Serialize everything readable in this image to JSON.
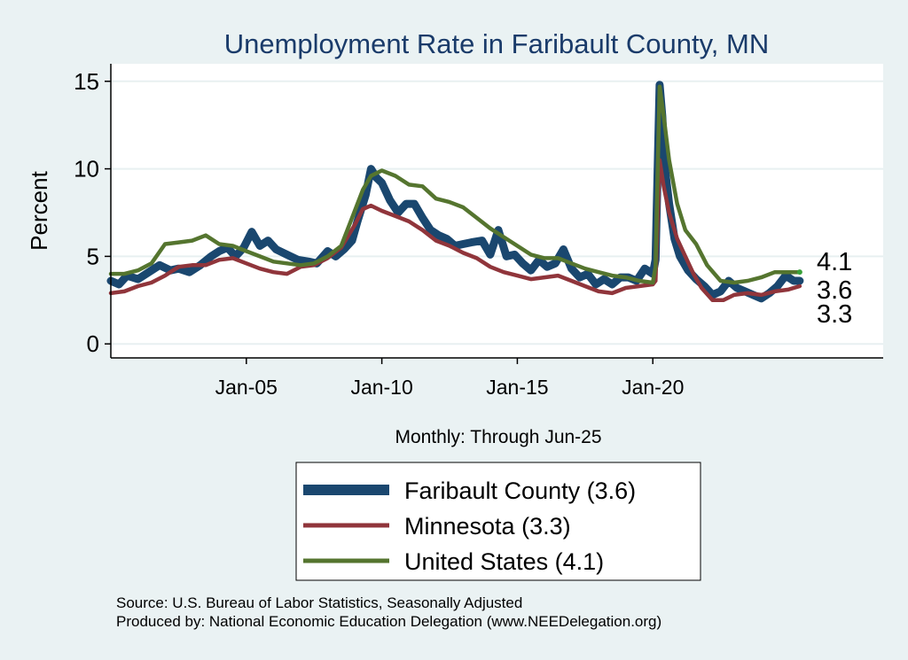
{
  "chart_data": {
    "type": "line",
    "title": "Unemployment Rate in Faribault  County, MN",
    "ylabel": "Percent",
    "xlabel": "Monthly: Through Jun-25",
    "ylim": [
      0,
      16
    ],
    "yticks": [
      0,
      5,
      10,
      15
    ],
    "xlim": [
      2000.0,
      2028.5
    ],
    "x_start": 2000.0,
    "x_end": 2025.42,
    "xticks": [
      {
        "x": 2005.0,
        "label": "Jan-05"
      },
      {
        "x": 2010.0,
        "label": "Jan-10"
      },
      {
        "x": 2015.0,
        "label": "Jan-15"
      },
      {
        "x": 2020.0,
        "label": "Jan-20"
      }
    ],
    "grid": true,
    "legend_position": "bottom",
    "series": [
      {
        "name": "Faribault  County",
        "legend_label": "Faribault  County (3.6)",
        "color": "#1a476f",
        "end_label": "3.6",
        "points": [
          [
            2000.0,
            3.6
          ],
          [
            2000.3,
            3.4
          ],
          [
            2000.6,
            3.9
          ],
          [
            2001.0,
            3.7
          ],
          [
            2001.4,
            4.1
          ],
          [
            2001.8,
            4.5
          ],
          [
            2002.2,
            4.2
          ],
          [
            2002.5,
            4.3
          ],
          [
            2002.9,
            4.1
          ],
          [
            2003.3,
            4.5
          ],
          [
            2003.7,
            5.0
          ],
          [
            2004.0,
            5.3
          ],
          [
            2004.3,
            5.5
          ],
          [
            2004.6,
            5.0
          ],
          [
            2004.9,
            5.5
          ],
          [
            2005.2,
            6.4
          ],
          [
            2005.5,
            5.6
          ],
          [
            2005.8,
            5.9
          ],
          [
            2006.1,
            5.4
          ],
          [
            2006.5,
            5.1
          ],
          [
            2006.9,
            4.8
          ],
          [
            2007.3,
            4.7
          ],
          [
            2007.6,
            4.6
          ],
          [
            2008.0,
            5.3
          ],
          [
            2008.3,
            5.0
          ],
          [
            2008.6,
            5.4
          ],
          [
            2008.9,
            5.9
          ],
          [
            2009.1,
            7.0
          ],
          [
            2009.4,
            8.5
          ],
          [
            2009.6,
            10.0
          ],
          [
            2009.8,
            9.5
          ],
          [
            2010.0,
            9.2
          ],
          [
            2010.3,
            8.2
          ],
          [
            2010.6,
            7.5
          ],
          [
            2010.9,
            8.0
          ],
          [
            2011.2,
            8.0
          ],
          [
            2011.5,
            7.2
          ],
          [
            2011.8,
            6.5
          ],
          [
            2012.1,
            6.2
          ],
          [
            2012.4,
            6.0
          ],
          [
            2012.7,
            5.6
          ],
          [
            2013.0,
            5.7
          ],
          [
            2013.3,
            5.8
          ],
          [
            2013.7,
            5.9
          ],
          [
            2014.0,
            5.1
          ],
          [
            2014.3,
            6.5
          ],
          [
            2014.6,
            5.0
          ],
          [
            2014.9,
            5.1
          ],
          [
            2015.2,
            4.6
          ],
          [
            2015.5,
            4.2
          ],
          [
            2015.8,
            4.8
          ],
          [
            2016.1,
            4.4
          ],
          [
            2016.4,
            4.6
          ],
          [
            2016.7,
            5.4
          ],
          [
            2017.0,
            4.3
          ],
          [
            2017.3,
            3.8
          ],
          [
            2017.6,
            4.0
          ],
          [
            2017.9,
            3.4
          ],
          [
            2018.2,
            3.7
          ],
          [
            2018.5,
            3.4
          ],
          [
            2018.8,
            3.8
          ],
          [
            2019.1,
            3.8
          ],
          [
            2019.4,
            3.6
          ],
          [
            2019.7,
            4.3
          ],
          [
            2020.0,
            4.0
          ],
          [
            2020.1,
            4.8
          ],
          [
            2020.25,
            14.8
          ],
          [
            2020.35,
            13.0
          ],
          [
            2020.45,
            10.0
          ],
          [
            2020.6,
            8.0
          ],
          [
            2020.8,
            6.0
          ],
          [
            2021.0,
            5.0
          ],
          [
            2021.3,
            4.2
          ],
          [
            2021.6,
            3.7
          ],
          [
            2021.9,
            3.3
          ],
          [
            2022.2,
            2.8
          ],
          [
            2022.5,
            3.0
          ],
          [
            2022.8,
            3.6
          ],
          [
            2023.1,
            3.2
          ],
          [
            2023.4,
            3.0
          ],
          [
            2023.7,
            2.8
          ],
          [
            2024.0,
            2.6
          ],
          [
            2024.3,
            2.9
          ],
          [
            2024.6,
            3.3
          ],
          [
            2024.9,
            3.9
          ],
          [
            2025.2,
            3.6
          ],
          [
            2025.42,
            3.6
          ]
        ]
      },
      {
        "name": "Minnesota",
        "legend_label": "Minnesota (3.3)",
        "color": "#90353b",
        "end_label": "3.3",
        "points": [
          [
            2000.0,
            2.9
          ],
          [
            2000.5,
            3.0
          ],
          [
            2001.0,
            3.3
          ],
          [
            2001.5,
            3.5
          ],
          [
            2002.0,
            3.9
          ],
          [
            2002.5,
            4.4
          ],
          [
            2003.0,
            4.5
          ],
          [
            2003.5,
            4.5
          ],
          [
            2004.0,
            4.8
          ],
          [
            2004.5,
            4.9
          ],
          [
            2005.0,
            4.6
          ],
          [
            2005.5,
            4.3
          ],
          [
            2006.0,
            4.1
          ],
          [
            2006.5,
            4.0
          ],
          [
            2007.0,
            4.4
          ],
          [
            2007.5,
            4.5
          ],
          [
            2008.0,
            4.9
          ],
          [
            2008.5,
            5.5
          ],
          [
            2009.0,
            6.8
          ],
          [
            2009.3,
            7.7
          ],
          [
            2009.6,
            7.9
          ],
          [
            2010.0,
            7.6
          ],
          [
            2010.5,
            7.3
          ],
          [
            2011.0,
            7.0
          ],
          [
            2011.5,
            6.5
          ],
          [
            2012.0,
            5.9
          ],
          [
            2012.5,
            5.6
          ],
          [
            2013.0,
            5.2
          ],
          [
            2013.5,
            4.9
          ],
          [
            2014.0,
            4.4
          ],
          [
            2014.5,
            4.1
          ],
          [
            2015.0,
            3.9
          ],
          [
            2015.5,
            3.7
          ],
          [
            2016.0,
            3.8
          ],
          [
            2016.5,
            3.9
          ],
          [
            2017.0,
            3.6
          ],
          [
            2017.5,
            3.3
          ],
          [
            2018.0,
            3.0
          ],
          [
            2018.5,
            2.9
          ],
          [
            2019.0,
            3.2
          ],
          [
            2019.5,
            3.3
          ],
          [
            2020.0,
            3.4
          ],
          [
            2020.1,
            3.6
          ],
          [
            2020.25,
            10.5
          ],
          [
            2020.4,
            9.0
          ],
          [
            2020.6,
            7.5
          ],
          [
            2020.9,
            6.0
          ],
          [
            2021.2,
            5.0
          ],
          [
            2021.5,
            4.0
          ],
          [
            2021.8,
            3.2
          ],
          [
            2022.2,
            2.5
          ],
          [
            2022.6,
            2.5
          ],
          [
            2023.0,
            2.8
          ],
          [
            2023.5,
            2.9
          ],
          [
            2024.0,
            2.8
          ],
          [
            2024.5,
            3.0
          ],
          [
            2025.0,
            3.1
          ],
          [
            2025.42,
            3.3
          ]
        ]
      },
      {
        "name": "United States",
        "legend_label": "United States (4.1)",
        "color": "#55752f",
        "end_label": "4.1",
        "points": [
          [
            2000.0,
            4.0
          ],
          [
            2000.5,
            4.0
          ],
          [
            2001.0,
            4.2
          ],
          [
            2001.5,
            4.6
          ],
          [
            2002.0,
            5.7
          ],
          [
            2002.5,
            5.8
          ],
          [
            2003.0,
            5.9
          ],
          [
            2003.5,
            6.2
          ],
          [
            2004.0,
            5.7
          ],
          [
            2004.5,
            5.6
          ],
          [
            2005.0,
            5.3
          ],
          [
            2005.5,
            5.0
          ],
          [
            2006.0,
            4.7
          ],
          [
            2006.5,
            4.6
          ],
          [
            2007.0,
            4.5
          ],
          [
            2007.5,
            4.6
          ],
          [
            2008.0,
            5.0
          ],
          [
            2008.5,
            5.6
          ],
          [
            2009.0,
            7.6
          ],
          [
            2009.3,
            8.8
          ],
          [
            2009.6,
            9.6
          ],
          [
            2010.0,
            9.9
          ],
          [
            2010.5,
            9.6
          ],
          [
            2011.0,
            9.1
          ],
          [
            2011.5,
            9.0
          ],
          [
            2012.0,
            8.3
          ],
          [
            2012.5,
            8.1
          ],
          [
            2013.0,
            7.8
          ],
          [
            2013.5,
            7.2
          ],
          [
            2014.0,
            6.6
          ],
          [
            2014.5,
            6.1
          ],
          [
            2015.0,
            5.6
          ],
          [
            2015.5,
            5.1
          ],
          [
            2016.0,
            4.9
          ],
          [
            2016.5,
            4.9
          ],
          [
            2017.0,
            4.6
          ],
          [
            2017.5,
            4.3
          ],
          [
            2018.0,
            4.1
          ],
          [
            2018.5,
            3.9
          ],
          [
            2019.0,
            3.8
          ],
          [
            2019.5,
            3.6
          ],
          [
            2020.0,
            3.5
          ],
          [
            2020.1,
            4.4
          ],
          [
            2020.25,
            14.7
          ],
          [
            2020.4,
            13.0
          ],
          [
            2020.6,
            10.5
          ],
          [
            2020.9,
            8.0
          ],
          [
            2021.2,
            6.5
          ],
          [
            2021.6,
            5.7
          ],
          [
            2022.0,
            4.5
          ],
          [
            2022.5,
            3.6
          ],
          [
            2023.0,
            3.5
          ],
          [
            2023.5,
            3.6
          ],
          [
            2024.0,
            3.8
          ],
          [
            2024.5,
            4.1
          ],
          [
            2025.0,
            4.1
          ],
          [
            2025.42,
            4.1
          ]
        ]
      }
    ]
  },
  "source": {
    "line1": "Source: U.S. Bureau of Labor Statistics, Seasonally Adjusted",
    "line2": "Produced by: National Economic Education Delegation (www.NEEDelegation.org)"
  }
}
